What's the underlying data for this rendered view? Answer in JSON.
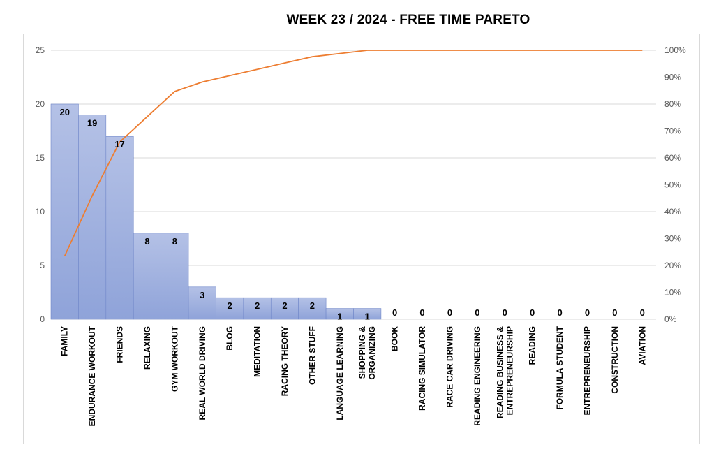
{
  "chart_data": {
    "type": "bar",
    "title": "WEEK 23 / 2024  - FREE TIME PARETO",
    "categories": [
      "FAMILY",
      "ENDURANCE WORKOUT",
      "FRIENDS",
      "RELAXING",
      "GYM WORKOUT",
      "REAL WORLD DRIVING",
      "BLOG",
      "MEDITATION",
      "RACING THEORY",
      "OTHER STUFF",
      "LANGUAGE LEARNING",
      "SHOPPING & ORGANIZING",
      "BOOK",
      "RACING SIMULATOR",
      "RACE CAR DRIVING",
      "READING ENGINEERING",
      "READING BUSINESS & ENTREPRENEURSHIP",
      "READING",
      "FORMULA STUDENT",
      "ENTREPRENEURSHIP",
      "CONSTRUCTION",
      "AVIATION"
    ],
    "category_lines": [
      [
        "FAMILY"
      ],
      [
        "ENDURANCE WORKOUT"
      ],
      [
        "FRIENDS"
      ],
      [
        "RELAXING"
      ],
      [
        "GYM WORKOUT"
      ],
      [
        "REAL WORLD DRIVING"
      ],
      [
        "BLOG"
      ],
      [
        "MEDITATION"
      ],
      [
        "RACING THEORY"
      ],
      [
        "OTHER STUFF"
      ],
      [
        "LANGUAGE LEARNING"
      ],
      [
        "SHOPPING &",
        "ORGANIZING"
      ],
      [
        "BOOK"
      ],
      [
        "RACING SIMULATOR"
      ],
      [
        "RACE CAR DRIVING"
      ],
      [
        "READING ENGINEERING"
      ],
      [
        "READING BUSINESS &",
        "ENTREPRENEURSHIP"
      ],
      [
        "READING"
      ],
      [
        "FORMULA STUDENT"
      ],
      [
        "ENTREPRENEURSHIP"
      ],
      [
        "CONSTRUCTION"
      ],
      [
        "AVIATION"
      ]
    ],
    "values": [
      20,
      19,
      17,
      8,
      8,
      3,
      2,
      2,
      2,
      2,
      1,
      1,
      0,
      0,
      0,
      0,
      0,
      0,
      0,
      0,
      0,
      0
    ],
    "cumulative_pct": [
      23.5,
      45.9,
      65.9,
      75.3,
      84.7,
      88.2,
      90.6,
      92.9,
      95.3,
      97.6,
      98.8,
      100,
      100,
      100,
      100,
      100,
      100,
      100,
      100,
      100,
      100,
      100
    ],
    "ylim": [
      0,
      25
    ],
    "yticks": [
      "0",
      "5",
      "10",
      "15",
      "20",
      "25"
    ],
    "y2lim": [
      0,
      100
    ],
    "y2ticks": [
      "0%",
      "10%",
      "20%",
      "30%",
      "40%",
      "50%",
      "60%",
      "70%",
      "80%",
      "90%",
      "100%"
    ],
    "grid": true,
    "legend": "none",
    "colors": {
      "bar": "#8fa3d9",
      "bar_top": "#b4c1e6",
      "bar_edge": "#6f86c9",
      "line": "#ed7d31",
      "grid": "#d9d9d9"
    }
  }
}
